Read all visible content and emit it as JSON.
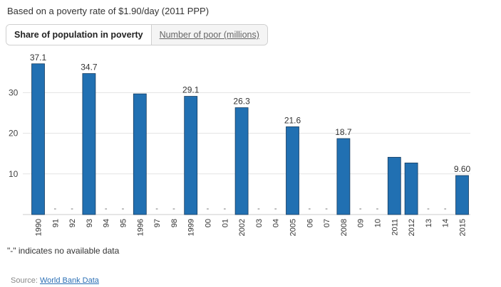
{
  "subtitle": "Based on a poverty rate of $1.90/day (2011 PPP)",
  "tabs": [
    {
      "label": "Share of population in poverty",
      "active": true
    },
    {
      "label": "Number of poor (millions)",
      "active": false
    }
  ],
  "note": "\"-\" indicates no available data",
  "source": {
    "prefix": "Source: ",
    "link": "World Bank Data"
  },
  "colors": {
    "bar": "#2170b2",
    "bar_edge": "#173c5f",
    "grid": "#e3e3e3"
  },
  "chart_data": {
    "type": "bar",
    "categories": [
      "1990",
      "91",
      "92",
      "93",
      "94",
      "95",
      "1996",
      "97",
      "98",
      "1999",
      "00",
      "01",
      "2002",
      "03",
      "04",
      "2005",
      "06",
      "07",
      "2008",
      "09",
      "10",
      "2011",
      "2012",
      "13",
      "14",
      "2015"
    ],
    "values": [
      37.1,
      null,
      null,
      34.7,
      null,
      null,
      29.7,
      null,
      null,
      29.1,
      null,
      null,
      26.3,
      null,
      null,
      21.6,
      null,
      null,
      18.7,
      null,
      null,
      14.1,
      12.7,
      null,
      null,
      9.6
    ],
    "data_labels": [
      "37.1",
      "",
      "",
      "34.7",
      "",
      "",
      "",
      "",
      "",
      "29.1",
      "",
      "",
      "26.3",
      "",
      "",
      "21.6",
      "",
      "",
      "18.7",
      "",
      "",
      "",
      "",
      "",
      "",
      "9.60"
    ],
    "missing_marker": "-",
    "ylim": [
      0,
      40
    ],
    "yticks": [
      10,
      20,
      30
    ],
    "title": "",
    "xlabel": "",
    "ylabel": "",
    "grid": true
  }
}
